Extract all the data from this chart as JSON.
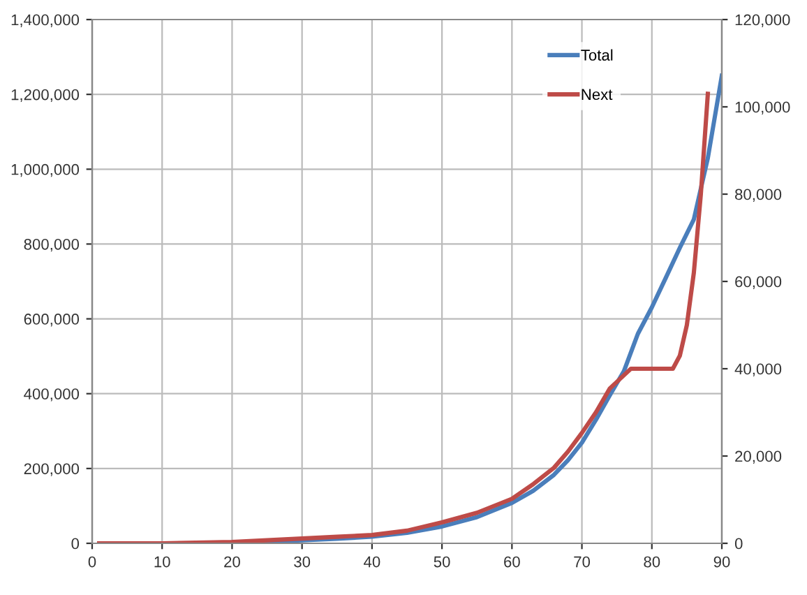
{
  "chart_data": {
    "type": "line",
    "xlim": [
      0,
      90
    ],
    "xticks": [
      0,
      10,
      20,
      30,
      40,
      50,
      60,
      70,
      80,
      90
    ],
    "ylim": [
      0,
      1400000
    ],
    "yticks": [
      {
        "value": 0,
        "label": "0"
      },
      {
        "value": 200000,
        "label": "200,000"
      },
      {
        "value": 400000,
        "label": "400,000"
      },
      {
        "value": 600000,
        "label": "600,000"
      },
      {
        "value": 800000,
        "label": "800,000"
      },
      {
        "value": 1000000,
        "label": "1,000,000"
      },
      {
        "value": 1200000,
        "label": "1,200,000"
      },
      {
        "value": 1400000,
        "label": "1,400,000"
      }
    ],
    "y2lim": [
      0,
      120000
    ],
    "y2ticks": [
      {
        "value": 0,
        "label": "0"
      },
      {
        "value": 20000,
        "label": "20,000"
      },
      {
        "value": 40000,
        "label": "40,000"
      },
      {
        "value": 60000,
        "label": "60,000"
      },
      {
        "value": 80000,
        "label": "80,000"
      },
      {
        "value": 100000,
        "label": "100,000"
      },
      {
        "value": 120000,
        "label": "120,000"
      }
    ],
    "grid": true,
    "legend": "top right",
    "marker": "none",
    "line_style": "solid",
    "series": [
      {
        "name": "Total",
        "color": "#4a7ebb",
        "x": [
          20,
          25,
          30,
          35,
          40,
          45,
          50,
          55,
          60,
          63,
          66,
          68,
          70,
          72,
          74,
          76,
          78,
          80,
          82,
          84,
          86,
          88,
          90
        ],
        "values": [
          2000,
          4000,
          8000,
          12000,
          18000,
          28000,
          45000,
          70000,
          108000,
          140000,
          183000,
          222000,
          269000,
          330000,
          396000,
          460000,
          560000,
          631000,
          710000,
          790000,
          866000,
          1030000,
          1250000
        ]
      },
      {
        "name": "Next",
        "color": "#be4b48",
        "axis": "y2",
        "x": [
          1,
          10,
          20,
          25,
          30,
          35,
          40,
          45,
          50,
          55,
          60,
          63,
          66,
          68,
          70,
          72,
          74,
          76,
          77,
          80,
          83,
          84,
          85,
          86,
          87,
          88
        ],
        "values": [
          0,
          0,
          300,
          700,
          1100,
          1500,
          1900,
          2900,
          4800,
          7000,
          10200,
          13500,
          17300,
          21000,
          25300,
          30000,
          35500,
          38500,
          40000,
          40000,
          40000,
          43000,
          50000,
          62000,
          80000,
          103000
        ]
      }
    ]
  }
}
